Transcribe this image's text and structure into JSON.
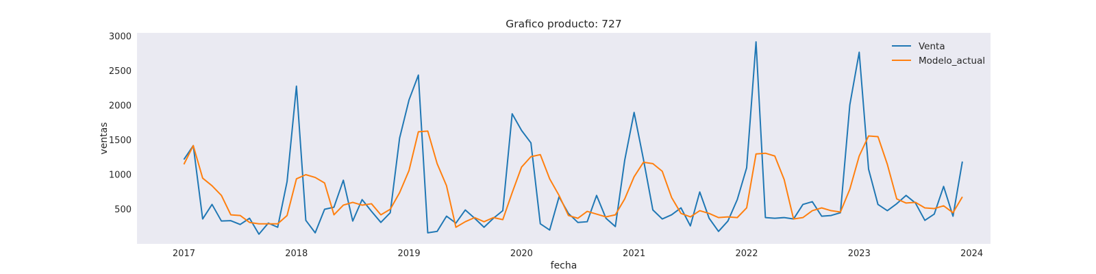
{
  "chart_data": {
    "type": "line",
    "title": "Grafico producto: 727",
    "xlabel": "fecha",
    "ylabel": "ventas",
    "x_start": "2017-01",
    "x_frequency": "monthly",
    "xlim": [
      "2016-08",
      "2024-03"
    ],
    "ylim": [
      0,
      3050
    ],
    "x_ticks": [
      {
        "date": "2017-01",
        "label": "2017"
      },
      {
        "date": "2018-01",
        "label": "2018"
      },
      {
        "date": "2019-01",
        "label": "2019"
      },
      {
        "date": "2020-01",
        "label": "2020"
      },
      {
        "date": "2021-01",
        "label": "2021"
      },
      {
        "date": "2022-01",
        "label": "2022"
      },
      {
        "date": "2023-01",
        "label": "2023"
      },
      {
        "date": "2024-01",
        "label": "2024"
      }
    ],
    "y_ticks": [
      500,
      1000,
      1500,
      2000,
      2500,
      3000
    ],
    "grid": false,
    "background": "#eaeaf2",
    "legend": "top-right",
    "series": [
      {
        "name": "Venta",
        "color": "#1f77b4",
        "values": [
          1220,
          1420,
          360,
          570,
          330,
          335,
          280,
          370,
          140,
          300,
          240,
          900,
          2280,
          340,
          160,
          500,
          530,
          920,
          330,
          640,
          470,
          310,
          450,
          1530,
          2080,
          2440,
          160,
          180,
          400,
          300,
          490,
          370,
          240,
          370,
          480,
          1880,
          1640,
          1460,
          290,
          200,
          680,
          440,
          310,
          320,
          700,
          370,
          250,
          1210,
          1900,
          1220,
          490,
          360,
          420,
          520,
          260,
          750,
          370,
          180,
          330,
          640,
          1100,
          2920,
          380,
          370,
          380,
          360,
          570,
          610,
          400,
          410,
          450,
          2010,
          2770,
          1080,
          570,
          480,
          580,
          700,
          590,
          340,
          430,
          830,
          400,
          1190
        ]
      },
      {
        "name": "Modelo_actual",
        "color": "#ff7f0e",
        "values": [
          1150,
          1420,
          950,
          840,
          700,
          420,
          410,
          310,
          290,
          290,
          290,
          410,
          940,
          1000,
          960,
          880,
          420,
          560,
          600,
          560,
          580,
          420,
          500,
          740,
          1060,
          1620,
          1630,
          1160,
          840,
          240,
          320,
          380,
          320,
          380,
          350,
          740,
          1110,
          1260,
          1290,
          940,
          700,
          410,
          370,
          470,
          430,
          390,
          420,
          650,
          970,
          1180,
          1160,
          1050,
          670,
          440,
          390,
          480,
          440,
          380,
          390,
          380,
          520,
          1300,
          1310,
          1270,
          930,
          360,
          380,
          480,
          520,
          480,
          460,
          790,
          1270,
          1560,
          1550,
          1150,
          650,
          590,
          600,
          520,
          510,
          550,
          450,
          680
        ]
      }
    ]
  }
}
